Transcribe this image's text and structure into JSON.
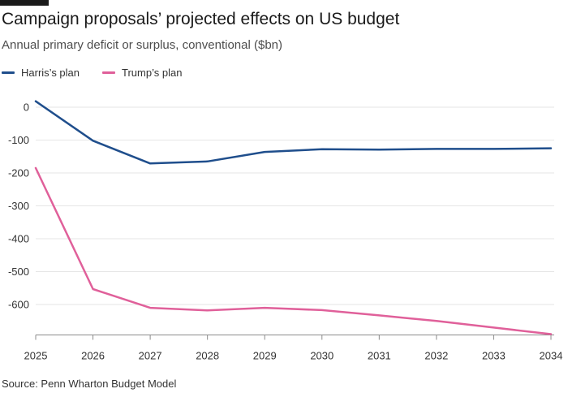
{
  "header": {
    "title": "Campaign proposals’ projected effects on US budget",
    "subtitle": "Annual primary deficit or surplus, conventional ($bn)"
  },
  "legend": [
    {
      "label": "Harris’s plan",
      "color": "#1f4e8c"
    },
    {
      "label": "Trump’s plan",
      "color": "#e0609a"
    }
  ],
  "source": "Source: Penn Wharton Budget Model",
  "chart_data": {
    "type": "line",
    "title": "Campaign proposals’ projected effects on US budget",
    "subtitle": "Annual primary deficit or surplus, conventional ($bn)",
    "xlabel": "",
    "ylabel": "",
    "categories": [
      "2025",
      "2026",
      "2027",
      "2028",
      "2029",
      "2030",
      "2031",
      "2032",
      "2033",
      "2034"
    ],
    "yticks": [
      0,
      -100,
      -200,
      -300,
      -400,
      -500,
      -600
    ],
    "ylim": [
      -690,
      30
    ],
    "grid": true,
    "legend_position": "top-left",
    "series": [
      {
        "name": "Harris’s plan",
        "color": "#1f4e8c",
        "values": [
          18,
          -102,
          -171,
          -165,
          -136,
          -128,
          -129,
          -127,
          -127,
          -125
        ]
      },
      {
        "name": "Trump’s plan",
        "color": "#e0609a",
        "values": [
          -185,
          -553,
          -610,
          -618,
          -610,
          -617,
          -633,
          -650,
          -670,
          -690
        ]
      }
    ]
  }
}
